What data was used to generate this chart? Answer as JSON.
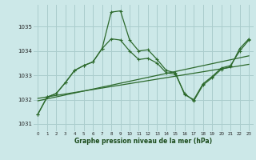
{
  "xlabel": "Graphe pression niveau de la mer (hPa)",
  "bg_color": "#cce8e8",
  "grid_color": "#aacccc",
  "line_color": "#2d6a2d",
  "ylim": [
    1030.7,
    1035.9
  ],
  "yticks": [
    1031,
    1032,
    1033,
    1034,
    1035
  ],
  "xticks": [
    0,
    1,
    2,
    3,
    4,
    5,
    6,
    7,
    8,
    9,
    10,
    11,
    12,
    13,
    14,
    15,
    16,
    17,
    18,
    19,
    20,
    21,
    22,
    23
  ],
  "series1_x": [
    0,
    1,
    2,
    3,
    4,
    5,
    6,
    7,
    8,
    9,
    10,
    11,
    12,
    13,
    14,
    15,
    16,
    17,
    18,
    19,
    20,
    21,
    22,
    23
  ],
  "series1_y": [
    1031.4,
    1032.1,
    1032.25,
    1032.7,
    1033.2,
    1033.4,
    1033.55,
    1034.1,
    1035.6,
    1035.65,
    1034.45,
    1034.0,
    1034.05,
    1033.65,
    1033.2,
    1033.1,
    1032.2,
    1032.0,
    1032.65,
    1032.95,
    1033.3,
    1033.4,
    1034.0,
    1034.45
  ],
  "series2_x": [
    0,
    1,
    2,
    3,
    4,
    5,
    6,
    7,
    8,
    9,
    10,
    11,
    12,
    13,
    14,
    15,
    16,
    17,
    18,
    19,
    20,
    21,
    22,
    23
  ],
  "series2_y": [
    1031.4,
    1032.1,
    1032.25,
    1032.7,
    1033.2,
    1033.4,
    1033.55,
    1034.1,
    1034.5,
    1034.45,
    1034.0,
    1033.65,
    1033.7,
    1033.5,
    1033.1,
    1033.05,
    1032.25,
    1031.95,
    1032.6,
    1032.9,
    1033.25,
    1033.35,
    1034.1,
    1034.5
  ],
  "trend1_x": [
    0,
    23
  ],
  "trend1_y": [
    1032.05,
    1033.45
  ],
  "trend2_x": [
    0,
    23
  ],
  "trend2_y": [
    1031.95,
    1033.8
  ]
}
